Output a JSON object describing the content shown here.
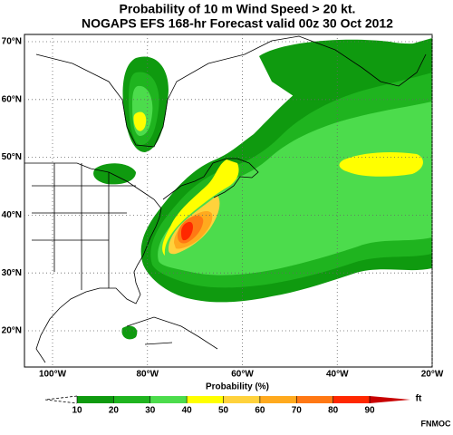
{
  "map": {
    "title": "Probability of 10 m Wind Speed > 20 kt.",
    "subtitle": "NOGAPS EFS 168-hr Forecast valid 00z 30 Oct 2012",
    "lat_ticks": [
      {
        "value": 70,
        "label": "70°N"
      },
      {
        "value": 60,
        "label": "60°N"
      },
      {
        "value": 50,
        "label": "50°N"
      },
      {
        "value": 40,
        "label": "40°N"
      },
      {
        "value": 30,
        "label": "30°N"
      },
      {
        "value": 20,
        "label": "20°N"
      }
    ],
    "lon_ticks": [
      {
        "value": -100,
        "label": "100°W"
      },
      {
        "value": -80,
        "label": "80°W"
      },
      {
        "value": -60,
        "label": "60°W"
      },
      {
        "value": -40,
        "label": "40°W"
      },
      {
        "value": -20,
        "label": "20°W"
      }
    ],
    "colorbar": {
      "label": "Probability (%)",
      "ticks": [
        10,
        20,
        30,
        40,
        50,
        60,
        70,
        80,
        90
      ],
      "colors": [
        "#0f9a0f",
        "#1fb41f",
        "#4cdc4c",
        "#ffff00",
        "#ffd23c",
        "#ffaa1e",
        "#ff7814",
        "#ff2800",
        "#c80000"
      ],
      "end_label": "ft"
    },
    "credit": "FNMOC"
  }
}
